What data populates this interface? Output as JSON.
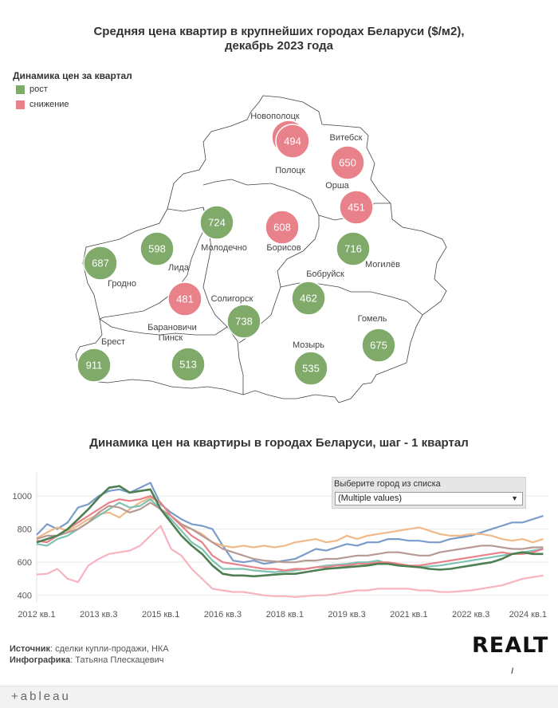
{
  "map_title": "Средняя цена квартир в крупнейших городах Беларуси ($/м2), декабрь 2023 года",
  "map_title_line1": "Средняя цена квартир в крупнейших городах Беларуси ($/м2),",
  "map_title_line2": "декабрь 2023 года",
  "legend": {
    "title": "Динамика цен за квартал",
    "items": [
      {
        "label": "рост",
        "color": "#7faa6a"
      },
      {
        "label": "снижение",
        "color": "#e8818a"
      }
    ]
  },
  "colors": {
    "up": "#7faa6a",
    "down": "#e8818a"
  },
  "cities": [
    {
      "name": "Новополоцк",
      "value": 494,
      "trend": "down"
    },
    {
      "name": "Полоцк",
      "value": 494,
      "trend": "down"
    },
    {
      "name": "Витебск",
      "value": 650,
      "trend": "down"
    },
    {
      "name": "Орша",
      "value": 451,
      "trend": "down"
    },
    {
      "name": "Молодечно",
      "value": 724,
      "trend": "up"
    },
    {
      "name": "Борисов",
      "value": 608,
      "trend": "down"
    },
    {
      "name": "Лида",
      "value": 598,
      "trend": "up"
    },
    {
      "name": "Гродно",
      "value": 687,
      "trend": "up"
    },
    {
      "name": "Могилёв",
      "value": 716,
      "trend": "up"
    },
    {
      "name": "Бобруйск",
      "value": 462,
      "trend": "up"
    },
    {
      "name": "Солигорск",
      "value": 738,
      "trend": "up"
    },
    {
      "name": "Барановичи",
      "value": 481,
      "trend": "down"
    },
    {
      "name": "Пинск",
      "value": 513,
      "trend": "up"
    },
    {
      "name": "Брест",
      "value": 911,
      "trend": "up"
    },
    {
      "name": "Мозырь",
      "value": 535,
      "trend": "up"
    },
    {
      "name": "Гомель",
      "value": 675,
      "trend": "up"
    }
  ],
  "chart_title": "Динамика цен на квартиры в городах Беларуси, шаг - 1 квартал",
  "filter": {
    "label": "Выберите город из списка",
    "value": "(Multiple values)"
  },
  "chart_data": {
    "type": "line",
    "x_ticks": [
      "2012 кв.1",
      "2013 кв.3",
      "2015 кв.1",
      "2016 кв.3",
      "2018 кв.1",
      "2019 кв.3",
      "2021 кв.1",
      "2022 кв.3",
      "2024 кв.1"
    ],
    "y_ticks": [
      400,
      600,
      800,
      1000
    ],
    "ylim": [
      360,
      1140
    ],
    "xlim": [
      0,
      49.5
    ],
    "series": [
      {
        "color": "#7b9cc9",
        "values": [
          765,
          830,
          800,
          840,
          930,
          950,
          1000,
          1030,
          1040,
          1020,
          1050,
          1080,
          950,
          900,
          860,
          830,
          820,
          800,
          700,
          610,
          600,
          610,
          590,
          600,
          610,
          620,
          650,
          680,
          670,
          690,
          710,
          700,
          720,
          720,
          740,
          740,
          730,
          730,
          720,
          720,
          740,
          750,
          760,
          780,
          800,
          820,
          840,
          840,
          860,
          880
        ]
      },
      {
        "color": "#f0b98a",
        "values": [
          745,
          780,
          810,
          790,
          820,
          860,
          890,
          900,
          870,
          920,
          960,
          990,
          960,
          880,
          820,
          800,
          770,
          720,
          700,
          690,
          700,
          690,
          700,
          690,
          700,
          720,
          730,
          740,
          720,
          730,
          760,
          740,
          760,
          770,
          780,
          790,
          800,
          810,
          790,
          770,
          760,
          760,
          770,
          770,
          760,
          740,
          730,
          740,
          720,
          740
        ]
      },
      {
        "color": "#7fc2b3",
        "values": [
          710,
          700,
          740,
          760,
          800,
          840,
          880,
          920,
          960,
          930,
          940,
          980,
          920,
          860,
          790,
          720,
          680,
          610,
          560,
          560,
          560,
          550,
          545,
          540,
          545,
          550,
          560,
          570,
          580,
          585,
          590,
          600,
          600,
          610,
          590,
          580,
          575,
          570,
          575,
          580,
          590,
          600,
          610,
          620,
          630,
          640,
          650,
          660,
          670,
          680
        ]
      },
      {
        "color": "#b69a94",
        "values": [
          740,
          760,
          760,
          780,
          800,
          840,
          900,
          940,
          930,
          900,
          920,
          960,
          920,
          880,
          830,
          800,
          760,
          720,
          680,
          660,
          640,
          620,
          610,
          605,
          600,
          600,
          610,
          610,
          620,
          620,
          630,
          640,
          640,
          650,
          660,
          660,
          650,
          640,
          640,
          660,
          670,
          680,
          690,
          700,
          700,
          690,
          680,
          680,
          690,
          690
        ]
      },
      {
        "color": "#e8818a",
        "values": [
          730,
          720,
          760,
          800,
          840,
          880,
          920,
          960,
          980,
          970,
          980,
          1000,
          960,
          880,
          820,
          760,
          720,
          640,
          600,
          590,
          580,
          570,
          560,
          560,
          550,
          560,
          560,
          570,
          570,
          580,
          580,
          590,
          590,
          600,
          600,
          590,
          580,
          580,
          590,
          600,
          610,
          620,
          630,
          640,
          650,
          660,
          650,
          650,
          660,
          680
        ]
      },
      {
        "color": "#4e7f52",
        "values": [
          720,
          740,
          760,
          800,
          860,
          920,
          990,
          1050,
          1060,
          1020,
          1030,
          1040,
          920,
          840,
          760,
          700,
          650,
          580,
          530,
          520,
          520,
          515,
          520,
          525,
          530,
          530,
          540,
          550,
          560,
          565,
          570,
          575,
          580,
          590,
          590,
          580,
          575,
          570,
          560,
          555,
          560,
          570,
          580,
          590,
          600,
          620,
          650,
          660,
          650,
          650
        ]
      },
      {
        "color": "#f7b3be",
        "values": [
          525,
          530,
          560,
          500,
          480,
          580,
          620,
          650,
          660,
          670,
          700,
          760,
          820,
          680,
          640,
          560,
          500,
          440,
          430,
          420,
          420,
          410,
          400,
          395,
          395,
          390,
          395,
          400,
          400,
          410,
          420,
          430,
          430,
          440,
          440,
          440,
          440,
          430,
          430,
          420,
          420,
          425,
          430,
          440,
          450,
          460,
          480,
          500,
          510,
          520
        ]
      }
    ]
  },
  "source_label": "Источник",
  "source_text": ": сделки купли-продажи, НКА",
  "infographic_label": "Инфографика",
  "infographic_text": ": Татьяна Плескацевич",
  "brand": "REALT",
  "footer_brand": "+ableau"
}
